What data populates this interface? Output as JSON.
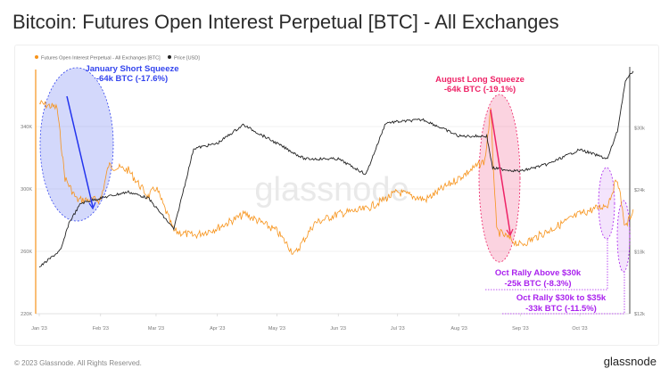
{
  "title": "Bitcoin: Futures Open Interest Perpetual [BTC] - All Exchanges",
  "footer": "© 2023 Glassnode. All Rights Reserved.",
  "logo": "glassnode",
  "watermark": "glassnode",
  "chart_data": {
    "type": "line",
    "title": "Bitcoin: Futures Open Interest Perpetual [BTC] - All Exchanges",
    "legend_position": "top-left",
    "grid": true,
    "x_ticks": [
      "Jan '23",
      "Feb '23",
      "Mar '23",
      "Apr '23",
      "May '23",
      "Jun '23",
      "Jul '23",
      "Aug '23",
      "Sep '23",
      "Oct '23"
    ],
    "y_left": {
      "ticks": [
        "220K",
        "260K",
        "300K",
        "340K"
      ],
      "range": [
        220000,
        370000
      ]
    },
    "y_right": {
      "ticks": [
        "$12k",
        "$18k",
        "$24k",
        "$30k"
      ],
      "range": [
        12000,
        37500
      ]
    },
    "series": [
      {
        "name": "Futures Open Interest Perpetual - All Exchanges [BTC]",
        "color": "#f7931a",
        "axis": "left",
        "points": [
          [
            "2023-01-01",
            355000
          ],
          [
            "2023-01-10",
            352000
          ],
          [
            "2023-01-14",
            307000
          ],
          [
            "2023-01-20",
            293000
          ],
          [
            "2023-02-01",
            293000
          ],
          [
            "2023-02-05",
            315000
          ],
          [
            "2023-02-15",
            312000
          ],
          [
            "2023-02-25",
            295000
          ],
          [
            "2023-03-01",
            301000
          ],
          [
            "2023-03-10",
            273000
          ],
          [
            "2023-03-20",
            270000
          ],
          [
            "2023-04-01",
            275000
          ],
          [
            "2023-04-15",
            284000
          ],
          [
            "2023-05-01",
            273000
          ],
          [
            "2023-05-10",
            258000
          ],
          [
            "2023-05-20",
            278000
          ],
          [
            "2023-06-01",
            284000
          ],
          [
            "2023-06-15",
            287000
          ],
          [
            "2023-07-01",
            298000
          ],
          [
            "2023-07-15",
            293000
          ],
          [
            "2023-08-01",
            307000
          ],
          [
            "2023-08-14",
            318000
          ],
          [
            "2023-08-17",
            350000
          ],
          [
            "2023-08-20",
            273000
          ],
          [
            "2023-09-01",
            264000
          ],
          [
            "2023-09-15",
            273000
          ],
          [
            "2023-10-01",
            284000
          ],
          [
            "2023-10-15",
            290000
          ],
          [
            "2023-10-20",
            307000
          ],
          [
            "2023-10-24",
            275000
          ],
          [
            "2023-10-28",
            287000
          ]
        ]
      },
      {
        "name": "Price [USD]",
        "color": "#222222",
        "axis": "right",
        "points": [
          [
            "2023-01-01",
            16500
          ],
          [
            "2023-01-12",
            18200
          ],
          [
            "2023-01-16",
            20800
          ],
          [
            "2023-01-22",
            22700
          ],
          [
            "2023-02-01",
            23200
          ],
          [
            "2023-02-15",
            23800
          ],
          [
            "2023-02-25",
            23200
          ],
          [
            "2023-03-10",
            20200
          ],
          [
            "2023-03-20",
            28000
          ],
          [
            "2023-04-01",
            28500
          ],
          [
            "2023-04-14",
            30300
          ],
          [
            "2023-05-01",
            28500
          ],
          [
            "2023-05-15",
            27000
          ],
          [
            "2023-06-01",
            27000
          ],
          [
            "2023-06-15",
            25500
          ],
          [
            "2023-06-25",
            30500
          ],
          [
            "2023-07-14",
            30800
          ],
          [
            "2023-08-01",
            29200
          ],
          [
            "2023-08-15",
            29200
          ],
          [
            "2023-08-18",
            26100
          ],
          [
            "2023-09-01",
            25800
          ],
          [
            "2023-09-15",
            26500
          ],
          [
            "2023-10-01",
            27900
          ],
          [
            "2023-10-15",
            27000
          ],
          [
            "2023-10-20",
            29700
          ],
          [
            "2023-10-24",
            34500
          ],
          [
            "2023-10-28",
            35500
          ]
        ]
      }
    ],
    "annotations": [
      {
        "title": "January Short Squeeze",
        "detail": "-64k BTC (-17.6%)",
        "color": "#3344ee"
      },
      {
        "title": "August Long Squeeze",
        "detail": "-64k BTC (-19.1%)",
        "color": "#ee2266"
      },
      {
        "title": "Oct Rally Above $30k",
        "detail": "-25k BTC (-8.3%)",
        "color": "#aa22ee"
      },
      {
        "title": "Oct Rally $30k to $35k",
        "detail": "-33k BTC (-11.5%)",
        "color": "#aa22ee"
      }
    ]
  }
}
